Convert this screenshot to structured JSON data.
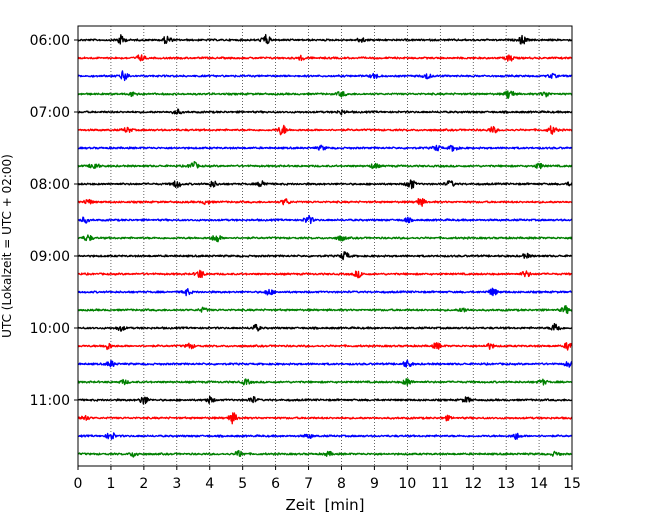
{
  "chart_data": {
    "type": "line",
    "title": "",
    "xlabel": "Zeit  [min]",
    "ylabel": "UTC (Lokalzeit = UTC + 02:00)",
    "xlim": [
      0,
      15
    ],
    "x_ticks": [
      0,
      1,
      2,
      3,
      4,
      5,
      6,
      7,
      8,
      9,
      10,
      11,
      12,
      13,
      14,
      15
    ],
    "y_tick_labels": [
      "06:00",
      "07:00",
      "08:00",
      "09:00",
      "10:00",
      "11:00"
    ],
    "y_tick_trace_indices": [
      0,
      4,
      8,
      12,
      16,
      20
    ],
    "grid": {
      "vertical": true,
      "style": "dotted"
    },
    "legend": "none",
    "trace_colors": [
      "#000000",
      "#ff0000",
      "#0000ff",
      "#008000"
    ],
    "traces": [
      {
        "start": "06:00",
        "color": "#000000",
        "bursts": [
          [
            1.3,
            0.9
          ],
          [
            2.7,
            0.8
          ],
          [
            5.7,
            1.0
          ],
          [
            8.6,
            0.5
          ],
          [
            13.5,
            0.8
          ]
        ]
      },
      {
        "start": "06:15",
        "color": "#ff0000",
        "bursts": [
          [
            1.9,
            0.6
          ],
          [
            6.8,
            0.4
          ],
          [
            13.1,
            0.6
          ]
        ]
      },
      {
        "start": "06:30",
        "color": "#0000ff",
        "bursts": [
          [
            1.4,
            1.0
          ],
          [
            9.0,
            0.5
          ],
          [
            10.6,
            0.5
          ],
          [
            14.4,
            0.4
          ]
        ]
      },
      {
        "start": "06:45",
        "color": "#008000",
        "bursts": [
          [
            1.7,
            0.5
          ],
          [
            8.0,
            0.5
          ],
          [
            13.1,
            1.0
          ],
          [
            14.2,
            0.5
          ]
        ]
      },
      {
        "start": "07:00",
        "color": "#000000",
        "bursts": [
          [
            3.0,
            0.5
          ],
          [
            8.0,
            0.4
          ]
        ]
      },
      {
        "start": "07:15",
        "color": "#ff0000",
        "bursts": [
          [
            1.5,
            0.5
          ],
          [
            6.2,
            1.0
          ],
          [
            12.6,
            0.6
          ],
          [
            14.4,
            0.8
          ]
        ]
      },
      {
        "start": "07:30",
        "color": "#0000ff",
        "bursts": [
          [
            7.4,
            0.4
          ],
          [
            10.9,
            0.5
          ],
          [
            11.4,
            0.6
          ]
        ]
      },
      {
        "start": "07:45",
        "color": "#008000",
        "bursts": [
          [
            0.5,
            0.7
          ],
          [
            3.5,
            0.8
          ],
          [
            9.0,
            0.5
          ],
          [
            14.0,
            0.5
          ]
        ]
      },
      {
        "start": "08:00",
        "color": "#000000",
        "bursts": [
          [
            3.0,
            0.7
          ],
          [
            4.1,
            0.6
          ],
          [
            5.6,
            0.7
          ],
          [
            10.1,
            1.0
          ],
          [
            11.3,
            0.6
          ],
          [
            15.0,
            0.6
          ]
        ]
      },
      {
        "start": "08:15",
        "color": "#ff0000",
        "bursts": [
          [
            0.3,
            0.5
          ],
          [
            3.9,
            0.4
          ],
          [
            6.3,
            0.6
          ],
          [
            10.4,
            0.8
          ]
        ]
      },
      {
        "start": "08:30",
        "color": "#0000ff",
        "bursts": [
          [
            0.2,
            0.5
          ],
          [
            7.0,
            0.8
          ],
          [
            10.0,
            0.4
          ]
        ]
      },
      {
        "start": "08:45",
        "color": "#008000",
        "bursts": [
          [
            0.3,
            0.6
          ],
          [
            4.2,
            0.8
          ],
          [
            8.0,
            0.5
          ]
        ]
      },
      {
        "start": "09:00",
        "color": "#000000",
        "bursts": [
          [
            8.1,
            0.8
          ],
          [
            13.6,
            0.4
          ]
        ]
      },
      {
        "start": "09:15",
        "color": "#ff0000",
        "bursts": [
          [
            3.7,
            0.8
          ],
          [
            8.5,
            0.6
          ],
          [
            13.6,
            0.6
          ]
        ]
      },
      {
        "start": "09:30",
        "color": "#0000ff",
        "bursts": [
          [
            3.3,
            0.6
          ],
          [
            5.8,
            0.6
          ],
          [
            12.6,
            0.7
          ]
        ]
      },
      {
        "start": "09:45",
        "color": "#008000",
        "bursts": [
          [
            3.8,
            0.4
          ],
          [
            11.7,
            0.4
          ],
          [
            14.8,
            0.7
          ]
        ]
      },
      {
        "start": "10:00",
        "color": "#000000",
        "bursts": [
          [
            1.3,
            0.5
          ],
          [
            5.4,
            0.6
          ],
          [
            14.5,
            1.0
          ]
        ]
      },
      {
        "start": "10:15",
        "color": "#ff0000",
        "bursts": [
          [
            0.9,
            0.6
          ],
          [
            3.4,
            0.5
          ],
          [
            10.9,
            0.6
          ],
          [
            12.5,
            0.5
          ],
          [
            14.9,
            0.8
          ]
        ]
      },
      {
        "start": "10:30",
        "color": "#0000ff",
        "bursts": [
          [
            1.0,
            0.6
          ],
          [
            10.0,
            0.7
          ],
          [
            14.9,
            0.5
          ]
        ]
      },
      {
        "start": "10:45",
        "color": "#008000",
        "bursts": [
          [
            1.4,
            0.4
          ],
          [
            5.1,
            0.5
          ],
          [
            10.0,
            0.7
          ],
          [
            14.1,
            0.5
          ]
        ]
      },
      {
        "start": "11:00",
        "color": "#000000",
        "bursts": [
          [
            2.0,
            0.8
          ],
          [
            4.0,
            0.6
          ],
          [
            5.3,
            0.6
          ],
          [
            11.8,
            0.5
          ]
        ]
      },
      {
        "start": "11:15",
        "color": "#ff0000",
        "bursts": [
          [
            0.2,
            0.5
          ],
          [
            4.7,
            1.0
          ],
          [
            11.2,
            0.4
          ]
        ]
      },
      {
        "start": "11:30",
        "color": "#0000ff",
        "bursts": [
          [
            1.0,
            0.8
          ],
          [
            7.0,
            0.4
          ],
          [
            13.3,
            0.6
          ]
        ]
      },
      {
        "start": "11:45",
        "color": "#008000",
        "bursts": [
          [
            1.7,
            0.5
          ],
          [
            4.9,
            0.6
          ],
          [
            7.6,
            0.4
          ],
          [
            14.5,
            0.4
          ]
        ]
      }
    ]
  }
}
